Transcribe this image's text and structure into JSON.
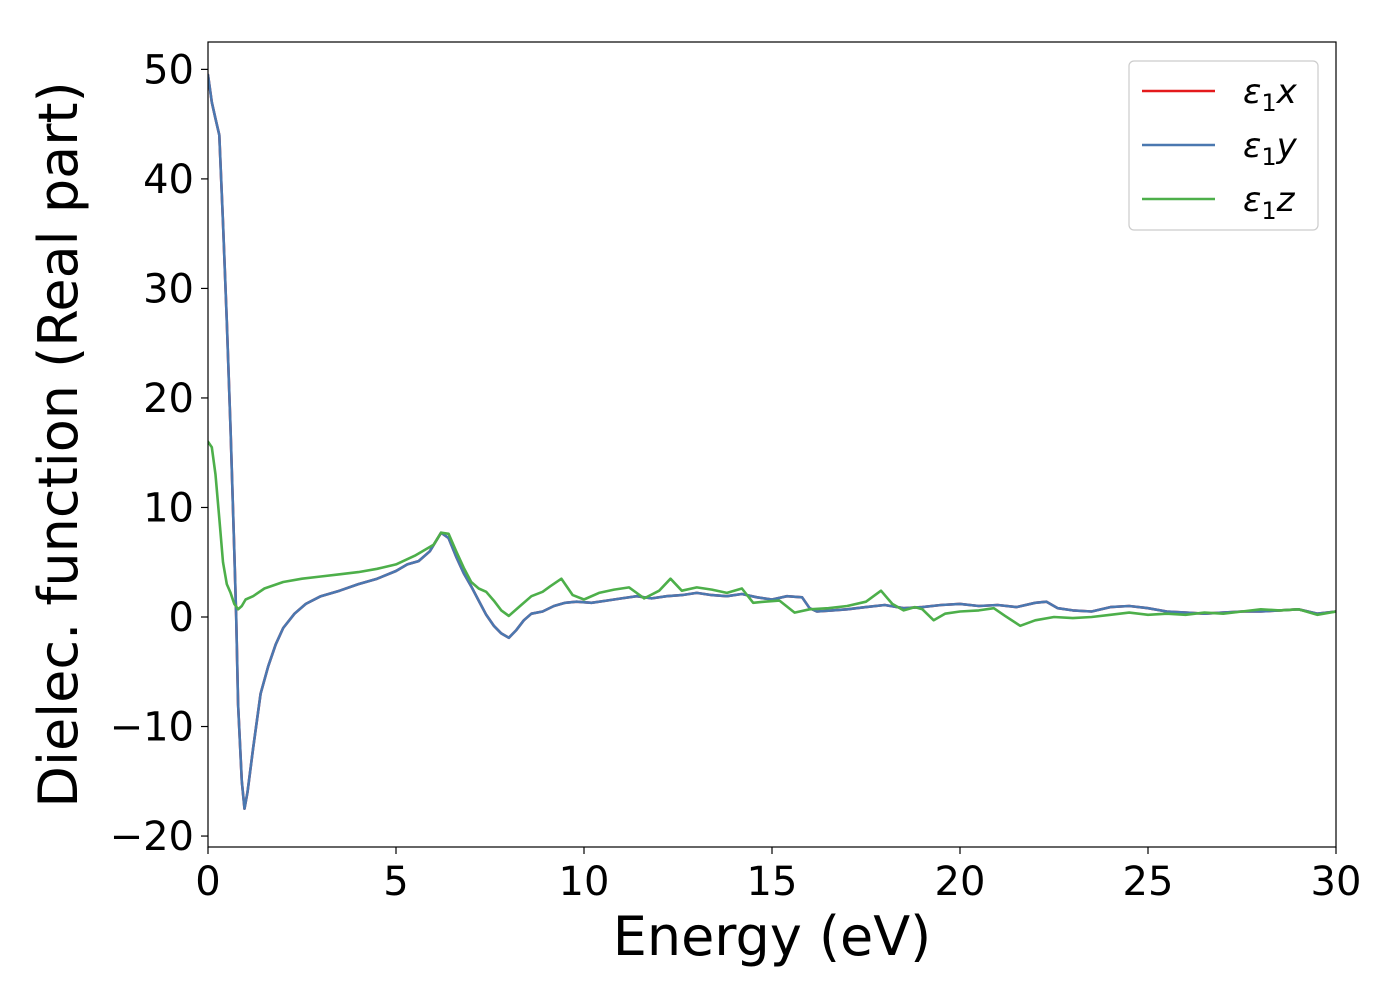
{
  "chart_data": {
    "type": "line",
    "xlabel": "Energy (eV)",
    "ylabel": "Dielec. function (Real part)",
    "xlim": [
      0,
      30
    ],
    "ylim": [
      -21,
      52.5
    ],
    "x_ticks": [
      0,
      5,
      10,
      15,
      20,
      25,
      30
    ],
    "y_ticks": [
      -20,
      -10,
      0,
      10,
      20,
      30,
      40,
      50
    ],
    "x_tick_labels": [
      "0",
      "5",
      "10",
      "15",
      "20",
      "25",
      "30"
    ],
    "y_tick_labels": [
      "−20",
      "−10",
      "0",
      "10",
      "20",
      "30",
      "40",
      "50"
    ],
    "grid": false,
    "legend_position": "top-right",
    "series": [
      {
        "name": "ε₁x",
        "legend_main": "ε",
        "legend_sub": "1",
        "legend_suffix": "x",
        "color": "#e41a1c",
        "points": [
          [
            0,
            49.5
          ],
          [
            0.1,
            47
          ],
          [
            0.2,
            45.5
          ],
          [
            0.3,
            44
          ],
          [
            0.4,
            36
          ],
          [
            0.5,
            27
          ],
          [
            0.6,
            17
          ],
          [
            0.7,
            6
          ],
          [
            0.75,
            0
          ],
          [
            0.8,
            -8
          ],
          [
            0.9,
            -15
          ],
          [
            0.97,
            -17.5
          ],
          [
            1.05,
            -16
          ],
          [
            1.2,
            -12
          ],
          [
            1.4,
            -7
          ],
          [
            1.6,
            -4.5
          ],
          [
            1.8,
            -2.5
          ],
          [
            2.0,
            -1
          ],
          [
            2.3,
            0.3
          ],
          [
            2.6,
            1.2
          ],
          [
            3.0,
            1.9
          ],
          [
            3.5,
            2.4
          ],
          [
            4.0,
            3.0
          ],
          [
            4.5,
            3.5
          ],
          [
            5.0,
            4.2
          ],
          [
            5.3,
            4.8
          ],
          [
            5.6,
            5.1
          ],
          [
            5.9,
            6.0
          ],
          [
            6.2,
            7.7
          ],
          [
            6.4,
            7.2
          ],
          [
            6.6,
            5.5
          ],
          [
            6.8,
            4.0
          ],
          [
            7.0,
            2.8
          ],
          [
            7.2,
            1.5
          ],
          [
            7.4,
            0.2
          ],
          [
            7.6,
            -0.8
          ],
          [
            7.8,
            -1.5
          ],
          [
            8.0,
            -1.9
          ],
          [
            8.2,
            -1.2
          ],
          [
            8.4,
            -0.3
          ],
          [
            8.6,
            0.3
          ],
          [
            8.9,
            0.5
          ],
          [
            9.2,
            1.0
          ],
          [
            9.5,
            1.3
          ],
          [
            9.8,
            1.4
          ],
          [
            10.2,
            1.3
          ],
          [
            10.6,
            1.5
          ],
          [
            11.0,
            1.7
          ],
          [
            11.4,
            1.9
          ],
          [
            11.8,
            1.7
          ],
          [
            12.2,
            1.9
          ],
          [
            12.6,
            2.0
          ],
          [
            13.0,
            2.2
          ],
          [
            13.4,
            2.0
          ],
          [
            13.8,
            1.9
          ],
          [
            14.2,
            2.1
          ],
          [
            14.6,
            1.8
          ],
          [
            15.0,
            1.6
          ],
          [
            15.4,
            1.9
          ],
          [
            15.8,
            1.8
          ],
          [
            16.0,
            0.8
          ],
          [
            16.2,
            0.5
          ],
          [
            16.6,
            0.6
          ],
          [
            17.0,
            0.7
          ],
          [
            17.5,
            0.9
          ],
          [
            18.0,
            1.1
          ],
          [
            18.5,
            0.8
          ],
          [
            19.0,
            0.9
          ],
          [
            19.5,
            1.1
          ],
          [
            20.0,
            1.2
          ],
          [
            20.5,
            1.0
          ],
          [
            21.0,
            1.1
          ],
          [
            21.5,
            0.9
          ],
          [
            22.0,
            1.3
          ],
          [
            22.3,
            1.4
          ],
          [
            22.6,
            0.8
          ],
          [
            23.0,
            0.6
          ],
          [
            23.5,
            0.5
          ],
          [
            24.0,
            0.9
          ],
          [
            24.5,
            1.0
          ],
          [
            25.0,
            0.8
          ],
          [
            25.5,
            0.5
          ],
          [
            26.0,
            0.4
          ],
          [
            26.5,
            0.3
          ],
          [
            27.0,
            0.4
          ],
          [
            27.5,
            0.5
          ],
          [
            28.0,
            0.5
          ],
          [
            28.5,
            0.6
          ],
          [
            29.0,
            0.7
          ],
          [
            29.5,
            0.3
          ],
          [
            30.0,
            0.5
          ]
        ]
      },
      {
        "name": "ε₁y",
        "legend_main": "ε",
        "legend_sub": "1",
        "legend_suffix": "y",
        "color": "#4a78b0",
        "points": [
          [
            0,
            49.5
          ],
          [
            0.1,
            47
          ],
          [
            0.2,
            45.5
          ],
          [
            0.3,
            44
          ],
          [
            0.4,
            36
          ],
          [
            0.5,
            27
          ],
          [
            0.6,
            17
          ],
          [
            0.7,
            6
          ],
          [
            0.75,
            0
          ],
          [
            0.8,
            -8
          ],
          [
            0.9,
            -15
          ],
          [
            0.97,
            -17.5
          ],
          [
            1.05,
            -16
          ],
          [
            1.2,
            -12
          ],
          [
            1.4,
            -7
          ],
          [
            1.6,
            -4.5
          ],
          [
            1.8,
            -2.5
          ],
          [
            2.0,
            -1
          ],
          [
            2.3,
            0.3
          ],
          [
            2.6,
            1.2
          ],
          [
            3.0,
            1.9
          ],
          [
            3.5,
            2.4
          ],
          [
            4.0,
            3.0
          ],
          [
            4.5,
            3.5
          ],
          [
            5.0,
            4.2
          ],
          [
            5.3,
            4.8
          ],
          [
            5.6,
            5.1
          ],
          [
            5.9,
            6.0
          ],
          [
            6.2,
            7.7
          ],
          [
            6.4,
            7.2
          ],
          [
            6.6,
            5.5
          ],
          [
            6.8,
            4.0
          ],
          [
            7.0,
            2.8
          ],
          [
            7.2,
            1.5
          ],
          [
            7.4,
            0.2
          ],
          [
            7.6,
            -0.8
          ],
          [
            7.8,
            -1.5
          ],
          [
            8.0,
            -1.9
          ],
          [
            8.2,
            -1.2
          ],
          [
            8.4,
            -0.3
          ],
          [
            8.6,
            0.3
          ],
          [
            8.9,
            0.5
          ],
          [
            9.2,
            1.0
          ],
          [
            9.5,
            1.3
          ],
          [
            9.8,
            1.4
          ],
          [
            10.2,
            1.3
          ],
          [
            10.6,
            1.5
          ],
          [
            11.0,
            1.7
          ],
          [
            11.4,
            1.9
          ],
          [
            11.8,
            1.7
          ],
          [
            12.2,
            1.9
          ],
          [
            12.6,
            2.0
          ],
          [
            13.0,
            2.2
          ],
          [
            13.4,
            2.0
          ],
          [
            13.8,
            1.9
          ],
          [
            14.2,
            2.1
          ],
          [
            14.6,
            1.8
          ],
          [
            15.0,
            1.6
          ],
          [
            15.4,
            1.9
          ],
          [
            15.8,
            1.8
          ],
          [
            16.0,
            0.8
          ],
          [
            16.2,
            0.5
          ],
          [
            16.6,
            0.6
          ],
          [
            17.0,
            0.7
          ],
          [
            17.5,
            0.9
          ],
          [
            18.0,
            1.1
          ],
          [
            18.5,
            0.8
          ],
          [
            19.0,
            0.9
          ],
          [
            19.5,
            1.1
          ],
          [
            20.0,
            1.2
          ],
          [
            20.5,
            1.0
          ],
          [
            21.0,
            1.1
          ],
          [
            21.5,
            0.9
          ],
          [
            22.0,
            1.3
          ],
          [
            22.3,
            1.4
          ],
          [
            22.6,
            0.8
          ],
          [
            23.0,
            0.6
          ],
          [
            23.5,
            0.5
          ],
          [
            24.0,
            0.9
          ],
          [
            24.5,
            1.0
          ],
          [
            25.0,
            0.8
          ],
          [
            25.5,
            0.5
          ],
          [
            26.0,
            0.4
          ],
          [
            26.5,
            0.3
          ],
          [
            27.0,
            0.4
          ],
          [
            27.5,
            0.5
          ],
          [
            28.0,
            0.5
          ],
          [
            28.5,
            0.6
          ],
          [
            29.0,
            0.7
          ],
          [
            29.5,
            0.3
          ],
          [
            30.0,
            0.5
          ]
        ]
      },
      {
        "name": "ε₁z",
        "legend_main": "ε",
        "legend_sub": "1",
        "legend_suffix": "z",
        "color": "#4daf4a",
        "points": [
          [
            0,
            16
          ],
          [
            0.1,
            15.5
          ],
          [
            0.2,
            13
          ],
          [
            0.3,
            9
          ],
          [
            0.4,
            5
          ],
          [
            0.5,
            3
          ],
          [
            0.6,
            2.2
          ],
          [
            0.7,
            1.2
          ],
          [
            0.8,
            0.7
          ],
          [
            0.9,
            1.0
          ],
          [
            1.0,
            1.6
          ],
          [
            1.2,
            1.9
          ],
          [
            1.5,
            2.6
          ],
          [
            2.0,
            3.2
          ],
          [
            2.5,
            3.5
          ],
          [
            3.0,
            3.7
          ],
          [
            3.5,
            3.9
          ],
          [
            4.0,
            4.1
          ],
          [
            4.5,
            4.4
          ],
          [
            5.0,
            4.8
          ],
          [
            5.5,
            5.6
          ],
          [
            6.0,
            6.6
          ],
          [
            6.2,
            7.7
          ],
          [
            6.4,
            7.6
          ],
          [
            6.6,
            6.0
          ],
          [
            6.8,
            4.5
          ],
          [
            7.0,
            3.2
          ],
          [
            7.2,
            2.6
          ],
          [
            7.4,
            2.3
          ],
          [
            7.6,
            1.5
          ],
          [
            7.8,
            0.6
          ],
          [
            8.0,
            0.1
          ],
          [
            8.3,
            1.0
          ],
          [
            8.6,
            1.9
          ],
          [
            8.9,
            2.3
          ],
          [
            9.1,
            2.8
          ],
          [
            9.4,
            3.5
          ],
          [
            9.7,
            2.0
          ],
          [
            10.0,
            1.6
          ],
          [
            10.4,
            2.2
          ],
          [
            10.8,
            2.5
          ],
          [
            11.2,
            2.7
          ],
          [
            11.6,
            1.7
          ],
          [
            12.0,
            2.4
          ],
          [
            12.3,
            3.5
          ],
          [
            12.6,
            2.4
          ],
          [
            13.0,
            2.7
          ],
          [
            13.4,
            2.5
          ],
          [
            13.8,
            2.2
          ],
          [
            14.2,
            2.6
          ],
          [
            14.5,
            1.3
          ],
          [
            14.8,
            1.4
          ],
          [
            15.2,
            1.5
          ],
          [
            15.6,
            0.4
          ],
          [
            16.0,
            0.7
          ],
          [
            16.5,
            0.8
          ],
          [
            17.0,
            1.0
          ],
          [
            17.5,
            1.4
          ],
          [
            17.9,
            2.4
          ],
          [
            18.2,
            1.2
          ],
          [
            18.5,
            0.6
          ],
          [
            18.8,
            0.9
          ],
          [
            19.0,
            0.7
          ],
          [
            19.3,
            -0.3
          ],
          [
            19.6,
            0.3
          ],
          [
            20.0,
            0.5
          ],
          [
            20.5,
            0.6
          ],
          [
            20.9,
            0.8
          ],
          [
            21.2,
            0.1
          ],
          [
            21.6,
            -0.8
          ],
          [
            22.0,
            -0.3
          ],
          [
            22.5,
            0.0
          ],
          [
            23.0,
            -0.1
          ],
          [
            23.5,
            0.0
          ],
          [
            24.0,
            0.2
          ],
          [
            24.5,
            0.4
          ],
          [
            25.0,
            0.2
          ],
          [
            25.5,
            0.3
          ],
          [
            26.0,
            0.2
          ],
          [
            26.5,
            0.4
          ],
          [
            27.0,
            0.3
          ],
          [
            27.5,
            0.5
          ],
          [
            28.0,
            0.7
          ],
          [
            28.5,
            0.6
          ],
          [
            29.0,
            0.7
          ],
          [
            29.5,
            0.2
          ],
          [
            30.0,
            0.5
          ]
        ]
      }
    ]
  }
}
